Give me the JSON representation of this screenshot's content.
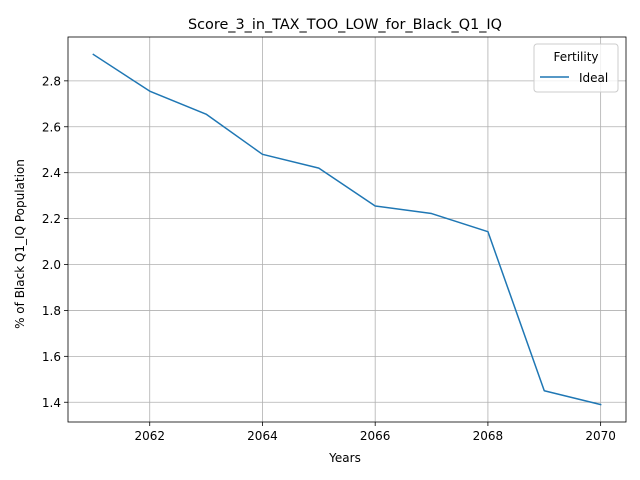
{
  "chart_data": {
    "type": "line",
    "title": "Score_3_in_TAX_TOO_LOW_for_Black_Q1_IQ",
    "xlabel": "Years",
    "ylabel": "% of Black Q1_IQ Population",
    "x": [
      2061,
      2062,
      2063,
      2064,
      2065,
      2066,
      2067,
      2068,
      2069,
      2070
    ],
    "series": [
      {
        "name": "Ideal",
        "color": "#1f77b4",
        "values": [
          2.915,
          2.755,
          2.655,
          2.48,
          2.42,
          2.255,
          2.222,
          2.143,
          1.45,
          1.39
        ]
      }
    ],
    "xlim": [
      2060.55,
      2070.45
    ],
    "ylim": [
      1.314,
      2.991
    ],
    "xticks": [
      2062,
      2064,
      2066,
      2068,
      2070
    ],
    "yticks": [
      1.4,
      1.6,
      1.8,
      2.0,
      2.2,
      2.4,
      2.6,
      2.8
    ],
    "ytick_labels": [
      "1.4",
      "1.6",
      "1.8",
      "2.0",
      "2.2",
      "2.4",
      "2.6",
      "2.8"
    ],
    "grid": true,
    "legend_title": "Fertility",
    "legend_position": "top-right"
  }
}
